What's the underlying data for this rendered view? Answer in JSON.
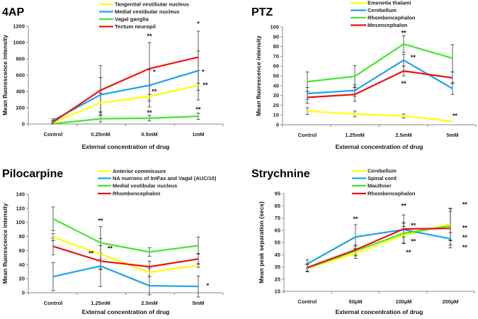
{
  "chart_data": [
    {
      "type": "line",
      "title": "4AP",
      "xlabel": "External concentration of drug",
      "ylabel": "Mean fluorescence intensity",
      "categories": [
        "Control",
        "0.25mM",
        "0.5mM",
        "1mM"
      ],
      "ylim": [
        0,
        1200
      ],
      "yticks": [
        0,
        200,
        400,
        600,
        800,
        1000,
        1200
      ],
      "legend_position": "top",
      "series": [
        {
          "name": "Tangential vestibular nucleus",
          "color": "#ffff00",
          "values": [
            20,
            260,
            340,
            475
          ],
          "errors": [
            15,
            120,
            130,
            180
          ]
        },
        {
          "name": "Medial vestibular nucleus",
          "color": "#1aa3e8",
          "values": [
            45,
            360,
            475,
            655
          ],
          "errors": [
            20,
            210,
            190,
            240
          ]
        },
        {
          "name": "Vagal ganglia",
          "color": "#44e62e",
          "values": [
            5,
            65,
            72,
            95
          ],
          "errors": [
            5,
            40,
            35,
            40
          ]
        },
        {
          "name": "Tectum neuropil",
          "color": "#ee1111",
          "values": [
            25,
            415,
            680,
            820
          ],
          "errors": [
            20,
            300,
            320,
            320
          ]
        }
      ],
      "annotations": [
        {
          "category": 2,
          "offset": 0,
          "y": 1080,
          "text": "**"
        },
        {
          "category": 2,
          "offset": 0.1,
          "y": 640,
          "text": "*"
        },
        {
          "category": 2,
          "offset": 0.1,
          "y": 400,
          "text": "**"
        },
        {
          "category": 2,
          "offset": 0,
          "y": 140,
          "text": "**"
        },
        {
          "category": 3,
          "offset": 0,
          "y": 1230,
          "text": "*"
        },
        {
          "category": 3,
          "offset": 0.1,
          "y": 640,
          "text": "*"
        },
        {
          "category": 3,
          "offset": 0.15,
          "y": 480,
          "text": "**"
        },
        {
          "category": 3,
          "offset": 0,
          "y": 180,
          "text": "**"
        }
      ]
    },
    {
      "type": "line",
      "title": "PTZ",
      "xlabel": "External concentration of drug",
      "ylabel": "Mean fluorescence intensity",
      "categories": [
        "Control",
        "1.25mM",
        "2.5mM",
        "5mM"
      ],
      "ylim": [
        0,
        100
      ],
      "yticks": [
        0,
        10,
        20,
        30,
        40,
        50,
        60,
        70,
        80,
        90,
        100
      ],
      "legend_position": "top",
      "series": [
        {
          "name": "Emenetia thalami",
          "color": "#ffff00",
          "values": [
            14,
            11,
            9,
            3.5
          ],
          "errors": [
            3.5,
            3,
            2,
            0
          ]
        },
        {
          "name": "Cerebellum",
          "color": "#1aa3e8",
          "values": [
            32,
            35,
            66,
            37
          ],
          "errors": [
            6,
            6,
            6,
            6
          ]
        },
        {
          "name": "Rhombencephalon",
          "color": "#44e62e",
          "values": [
            44,
            49.5,
            82.5,
            68
          ],
          "errors": [
            10,
            11,
            8.5,
            14
          ]
        },
        {
          "name": "Mesencephalon",
          "color": "#ee1111",
          "values": [
            28,
            31,
            55,
            48
          ],
          "errors": [
            6,
            7,
            5,
            6
          ]
        }
      ],
      "annotations": [
        {
          "category": 2,
          "offset": 0,
          "y": 94,
          "text": "**"
        },
        {
          "category": 2,
          "offset": 0.2,
          "y": 69,
          "text": "**"
        },
        {
          "category": 2,
          "offset": 0,
          "y": 42,
          "text": "**"
        },
        {
          "category": 3,
          "offset": 0.05,
          "y": 9,
          "text": "**"
        }
      ]
    },
    {
      "type": "line",
      "title": "Pilocarpine",
      "xlabel": "External concentration of drug",
      "ylabel": "Mean fluorescence intensity",
      "categories": [
        "Control",
        "1.25mM",
        "2.5mM",
        "5mM"
      ],
      "ylim": [
        0,
        140
      ],
      "yticks": [
        0,
        20,
        40,
        60,
        80,
        100,
        120,
        140
      ],
      "legend_position": "top",
      "series": [
        {
          "name": "Anterior commissure",
          "color": "#ffff00",
          "values": [
            79,
            55,
            29,
            39
          ],
          "errors": [
            5,
            22,
            6,
            3
          ]
        },
        {
          "name": "NA nuerons of IntFas and Vagal (AUC/10)",
          "color": "#1aa3e8",
          "values": [
            23,
            38,
            10,
            9
          ],
          "errors": [
            20,
            29,
            13,
            15
          ]
        },
        {
          "name": "Medial vestibular nucleus",
          "color": "#44e62e",
          "values": [
            105,
            71,
            58,
            67
          ],
          "errors": [
            17,
            23,
            6,
            12
          ]
        },
        {
          "name": "Rhombencephalon",
          "color": "#ee1111",
          "values": [
            66,
            45,
            37,
            48
          ],
          "errors": [
            12,
            11,
            8,
            8
          ]
        }
      ],
      "annotations": [
        {
          "category": 1,
          "offset": 0,
          "y": 102,
          "text": "**"
        },
        {
          "category": 1,
          "offset": 0.2,
          "y": 63,
          "text": "**"
        },
        {
          "category": 1,
          "offset": -0.2,
          "y": 56,
          "text": "**"
        },
        {
          "category": 3,
          "offset": 0.2,
          "y": 10,
          "text": "*"
        }
      ]
    },
    {
      "type": "line",
      "title": "Strychnine",
      "xlabel": "External concentration of drug",
      "ylabel": "Mean peak separation (secs)",
      "categories": [
        "Control",
        "50µM",
        "100µM",
        "200µM"
      ],
      "ylim": [
        15,
        95
      ],
      "yticks": [
        15,
        25,
        35,
        45,
        55,
        65,
        75,
        85,
        95
      ],
      "legend_position": "top",
      "series": [
        {
          "name": "Cerebellum",
          "color": "#ffff00",
          "values": [
            34,
            46,
            61,
            70
          ],
          "errors": [
            3,
            4,
            7,
            13
          ]
        },
        {
          "name": "Spinal cord",
          "color": "#1aa3e8",
          "values": [
            37.5,
            59.5,
            65.5,
            58
          ],
          "errors": [
            3.5,
            10,
            6,
            5
          ]
        },
        {
          "name": "Mauthner",
          "color": "#44e62e",
          "values": [
            34,
            48,
            62.5,
            68.5
          ],
          "errors": [
            3,
            4,
            8,
            12
          ]
        },
        {
          "name": "Rhombencephalon",
          "color": "#ee1111",
          "values": [
            34.5,
            49,
            66,
            66.5
          ],
          "errors": [
            3,
            4,
            11.5,
            16
          ]
        }
      ],
      "annotations": [
        {
          "category": 1,
          "offset": 0,
          "y": 74,
          "text": "**"
        },
        {
          "category": 2,
          "offset": 0,
          "y": 85,
          "text": "**"
        },
        {
          "category": 2,
          "offset": 0.2,
          "y": 69,
          "text": "**"
        },
        {
          "category": 2,
          "offset": 0.2,
          "y": 56,
          "text": "**"
        },
        {
          "category": 2,
          "offset": 0.1,
          "y": 47,
          "text": "**"
        },
        {
          "category": 3,
          "offset": 0.3,
          "y": 86,
          "text": "**"
        },
        {
          "category": 3,
          "offset": 0.3,
          "y": 67,
          "text": "**"
        },
        {
          "category": 3,
          "offset": 0.3,
          "y": 59,
          "text": "**"
        },
        {
          "category": 3,
          "offset": 0.3,
          "y": 51,
          "text": "**"
        }
      ]
    }
  ]
}
